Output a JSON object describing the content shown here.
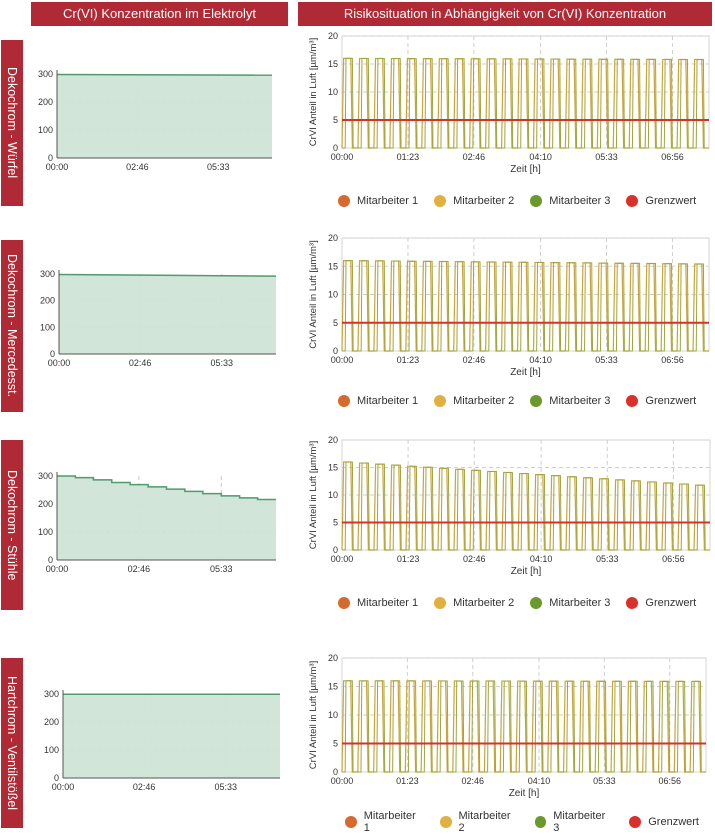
{
  "headers": {
    "left": "Cr(VI) Konzentration im Elektrolyt",
    "right": "Risikosituation in Abhängigkeit von Cr(VI) Konzentration"
  },
  "rows": [
    {
      "label": "Dekochrom - Würfel"
    },
    {
      "label": "Dekochrom - Mercedesst."
    },
    {
      "label": "Dekochrom - Stühle"
    },
    {
      "label": "Hartchrom - Ventilstößel"
    }
  ],
  "legend": [
    {
      "name": "Mitarbeiter 1",
      "color": "#d46a2e"
    },
    {
      "name": "Mitarbeiter 2",
      "color": "#e0b040"
    },
    {
      "name": "Mitarbeiter 3",
      "color": "#6a9a2e"
    },
    {
      "name": "Grenzwert",
      "color": "#d9302a"
    }
  ],
  "colors": {
    "brand": "#b02a36",
    "area_fill": "#cfe4d6",
    "area_line": "#4f9a6e",
    "grenzwert": "#d9302a",
    "worker_line": "#c8a43a",
    "worker_fill": "#9aa83c"
  },
  "chart_data": [
    {
      "type": "area",
      "title": "Dekochrom - Würfel",
      "x_ticks": [
        "00:00",
        "02:46",
        "05:33"
      ],
      "y_ticks": [
        "0",
        "100",
        "200",
        "300"
      ],
      "ylim": [
        0,
        300
      ],
      "xlim_hours": [
        0,
        7.4
      ],
      "points": [
        [
          0,
          298
        ],
        [
          7.4,
          296
        ]
      ],
      "stepped": false
    },
    {
      "type": "line",
      "title": "Dekochrom - Würfel",
      "xlabel": "Zeit [h]",
      "ylabel": "CrVI Anteil in Luft [µm/m³]",
      "x_ticks": [
        "00:00",
        "01:23",
        "02:46",
        "04:10",
        "05:33",
        "06:56"
      ],
      "y_ticks": [
        "0",
        "5",
        "10",
        "15",
        "20"
      ],
      "ylim": [
        0,
        20
      ],
      "xlim_hours": [
        0,
        7.7
      ],
      "grenzwert": 5,
      "peak_start": 16.0,
      "peak_end": 15.8,
      "cycles": 23
    },
    {
      "type": "area",
      "title": "Dekochrom - Mercedesst.",
      "x_ticks": [
        "00:00",
        "02:46",
        "05:33"
      ],
      "y_ticks": [
        "0",
        "100",
        "200",
        "300"
      ],
      "ylim": [
        0,
        300
      ],
      "xlim_hours": [
        0,
        7.4
      ],
      "points": [
        [
          0,
          298
        ],
        [
          7.4,
          292
        ]
      ],
      "stepped": false
    },
    {
      "type": "line",
      "title": "Dekochrom - Mercedesst.",
      "xlabel": "Zeit [h]",
      "ylabel": "CrVI Anteil in Luft [µm/m³]",
      "x_ticks": [
        "00:00",
        "01:23",
        "02:46",
        "04:10",
        "05:33",
        "06:56"
      ],
      "y_ticks": [
        "0",
        "5",
        "10",
        "15",
        "20"
      ],
      "ylim": [
        0,
        20
      ],
      "xlim_hours": [
        0,
        7.7
      ],
      "grenzwert": 5,
      "peak_start": 16.0,
      "peak_end": 15.4,
      "cycles": 23
    },
    {
      "type": "area",
      "title": "Dekochrom - Stühle",
      "x_ticks": [
        "00:00",
        "02:46",
        "05:33"
      ],
      "y_ticks": [
        "0",
        "100",
        "200",
        "300"
      ],
      "ylim": [
        0,
        300
      ],
      "xlim_hours": [
        0,
        7.4
      ],
      "points": [
        [
          0,
          300
        ],
        [
          0.62,
          294
        ],
        [
          1.23,
          286
        ],
        [
          1.85,
          277
        ],
        [
          2.47,
          269
        ],
        [
          3.08,
          261
        ],
        [
          3.7,
          253
        ],
        [
          4.32,
          245
        ],
        [
          4.93,
          237
        ],
        [
          5.55,
          229
        ],
        [
          6.17,
          222
        ],
        [
          6.78,
          216
        ],
        [
          7.4,
          216
        ]
      ],
      "stepped": true
    },
    {
      "type": "line",
      "title": "Dekochrom - Stühle",
      "xlabel": "Zeit [h]",
      "ylabel": "CrVI Anteil in Luft [µm/m³]",
      "x_ticks": [
        "00:00",
        "01:23",
        "02:46",
        "04:10",
        "05:33",
        "06:56"
      ],
      "y_ticks": [
        "0",
        "5",
        "10",
        "15",
        "20"
      ],
      "ylim": [
        0,
        20
      ],
      "xlim_hours": [
        0,
        7.7
      ],
      "grenzwert": 5,
      "peak_start": 16.0,
      "peak_end": 11.8,
      "cycles": 23
    },
    {
      "type": "area",
      "title": "Hartchrom - Ventilstößel",
      "x_ticks": [
        "00:00",
        "02:46",
        "05:33"
      ],
      "y_ticks": [
        "0",
        "100",
        "200",
        "300"
      ],
      "ylim": [
        0,
        300
      ],
      "xlim_hours": [
        0,
        7.4
      ],
      "points": [
        [
          0,
          299
        ],
        [
          7.4,
          299
        ]
      ],
      "stepped": false
    },
    {
      "type": "line",
      "title": "Hartchrom - Ventilstößel",
      "xlabel": "Zeit [h]",
      "ylabel": "CrVI Anteil in Luft [µm/m³]",
      "x_ticks": [
        "00:00",
        "01:23",
        "02:46",
        "04:10",
        "05:33",
        "06:56"
      ],
      "y_ticks": [
        "0",
        "5",
        "10",
        "15",
        "20"
      ],
      "ylim": [
        0,
        20
      ],
      "xlim_hours": [
        0,
        7.7
      ],
      "grenzwert": 5,
      "peak_start": 16.0,
      "peak_end": 15.9,
      "cycles": 23
    }
  ]
}
